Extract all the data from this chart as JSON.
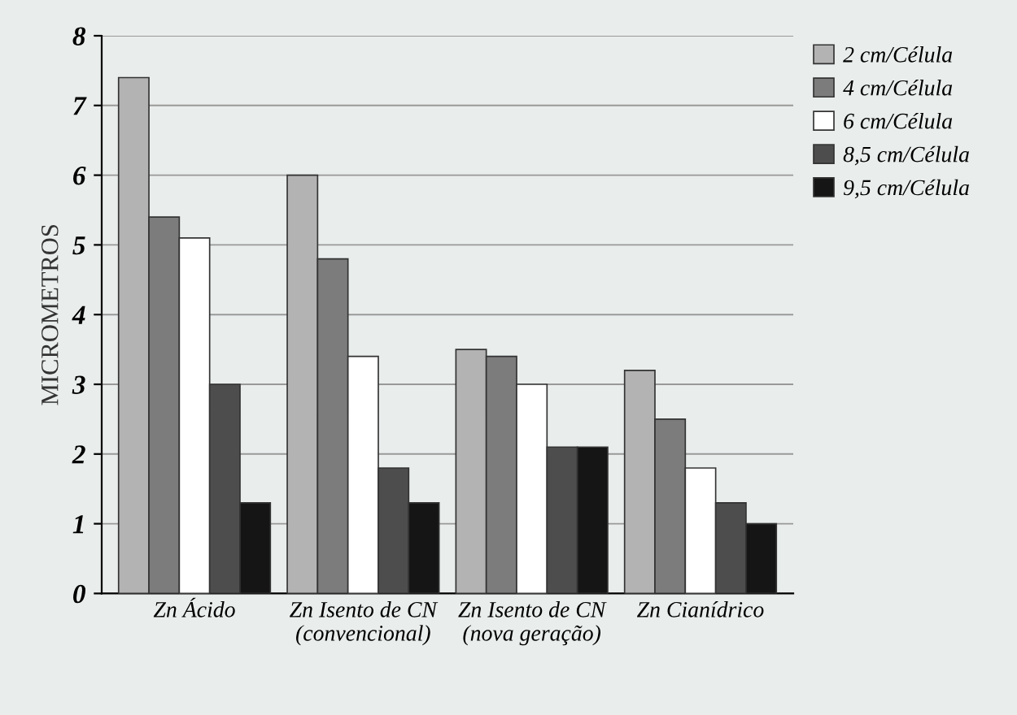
{
  "chart_data": {
    "type": "bar",
    "ylabel": "MICROMETROS",
    "categories": [
      "Zn Ácido",
      "Zn Isento de CN\n(convencional)",
      "Zn Isento de CN\n(nova geração)",
      "Zn Cianídrico"
    ],
    "series": [
      {
        "name": "2 cm/Célula",
        "color": "#b3b3b3",
        "values": [
          7.4,
          6.0,
          3.5,
          3.2
        ]
      },
      {
        "name": "4 cm/Célula",
        "color": "#7c7c7c",
        "values": [
          5.4,
          4.8,
          3.4,
          2.5
        ]
      },
      {
        "name": "6 cm/Célula",
        "color": "#ffffff",
        "values": [
          5.1,
          3.4,
          3.0,
          1.8
        ]
      },
      {
        "name": "8,5 cm/Célula",
        "color": "#4d4d4d",
        "values": [
          3.0,
          1.8,
          2.1,
          1.3
        ]
      },
      {
        "name": "9,5 cm/Célula",
        "color": "#151515",
        "values": [
          1.3,
          1.3,
          2.1,
          1.0
        ]
      }
    ],
    "ylim": [
      0,
      8
    ],
    "yticks": [
      0,
      1,
      2,
      3,
      4,
      5,
      6,
      7,
      8
    ],
    "grid": "y",
    "legend": "top right"
  }
}
